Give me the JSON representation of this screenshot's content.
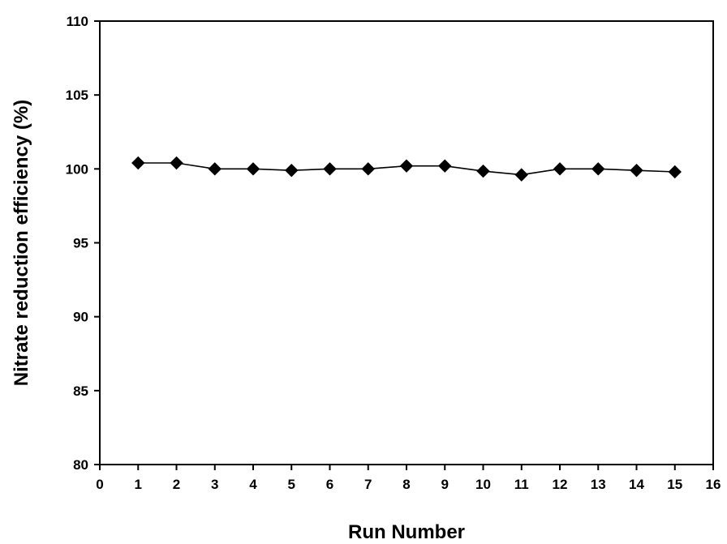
{
  "chart_data": {
    "type": "line",
    "xlabel": "Run Number",
    "ylabel": "Nitrate reduction efficiency (%)",
    "xlim": [
      0,
      16
    ],
    "ylim": [
      80,
      110
    ],
    "xticks": [
      0,
      1,
      2,
      3,
      4,
      5,
      6,
      7,
      8,
      9,
      10,
      11,
      12,
      13,
      14,
      15,
      16
    ],
    "yticks": [
      80,
      85,
      90,
      95,
      100,
      105,
      110
    ],
    "grid": false,
    "marker": "diamond",
    "series": [
      {
        "x": [
          1,
          2,
          3,
          4,
          5,
          6,
          7,
          8,
          9,
          10,
          11,
          12,
          13,
          14,
          15
        ],
        "y": [
          100.4,
          100.4,
          100.0,
          100.0,
          99.9,
          100.0,
          100.0,
          100.2,
          100.2,
          99.85,
          99.6,
          100.0,
          100.0,
          99.9,
          99.8
        ]
      }
    ],
    "colors": {
      "line": "#000000",
      "marker": "#000000"
    }
  }
}
